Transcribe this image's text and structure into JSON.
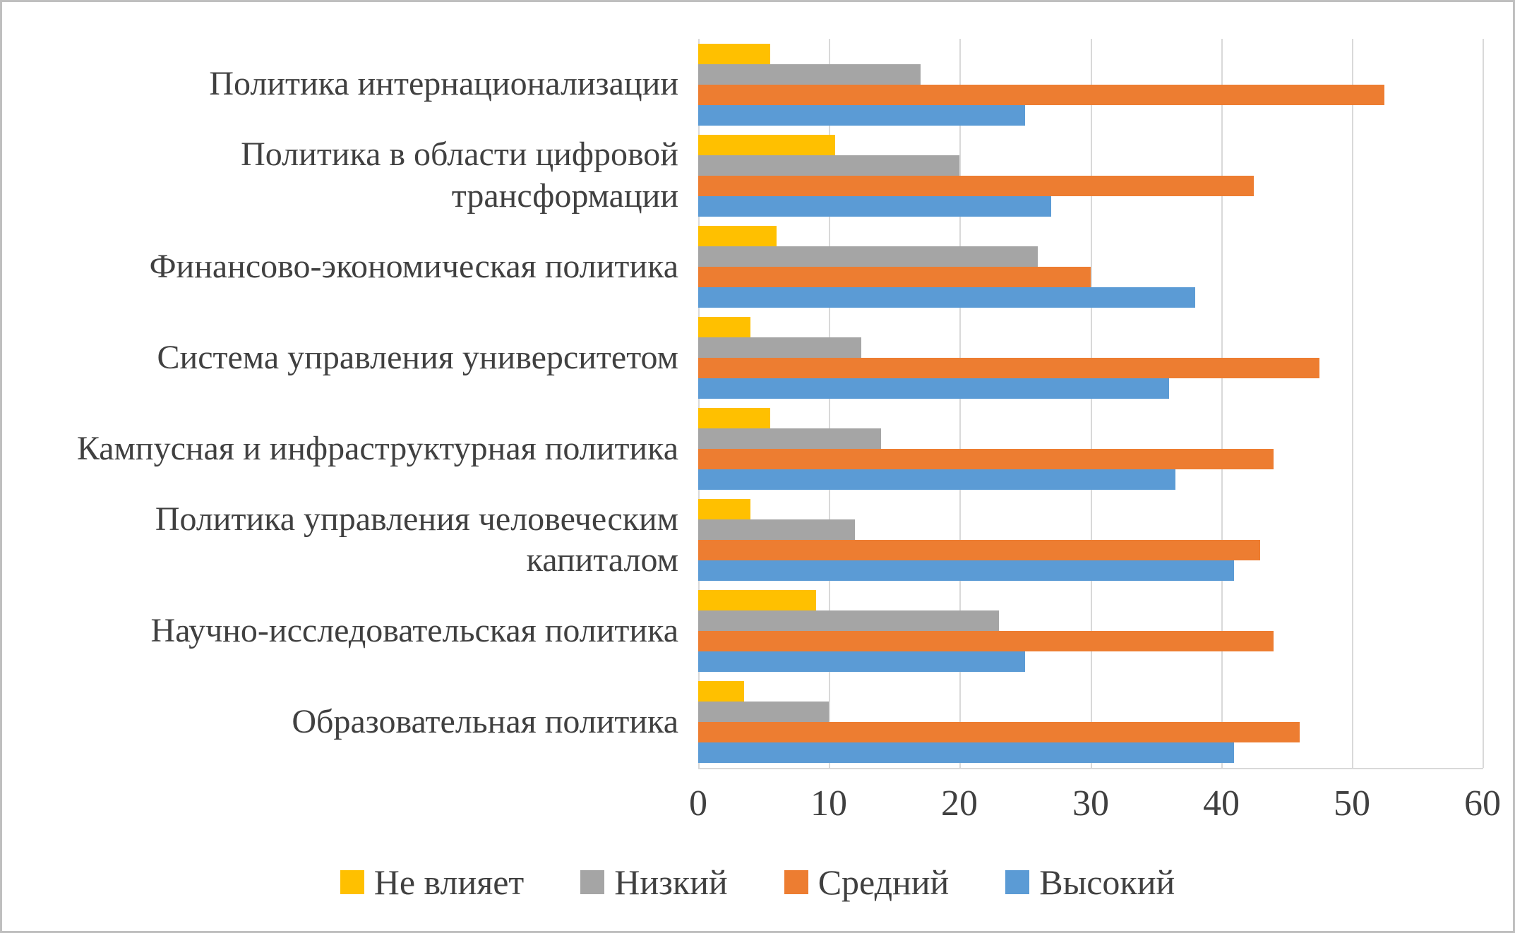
{
  "frame": {
    "background": "#FFFFFF",
    "border_color": "#BFBFBF"
  },
  "chart_data": {
    "type": "bar",
    "orientation": "horizontal",
    "title": "",
    "xlabel": "",
    "ylabel": "",
    "grid": true,
    "legend_position": "bottom",
    "xlim": [
      0,
      60
    ],
    "ticks": [
      0,
      10,
      20,
      30,
      40,
      50,
      60
    ],
    "categories": [
      "Политика интернационализации",
      "Политика в области цифровой трансформации",
      "Финансово-экономическая политика",
      "Система управления университетом",
      "Кампусная и инфраструктурная политика",
      "Политика управления человеческим капиталом",
      "Научно-исследовательская политика",
      "Образовательная политика"
    ],
    "series": [
      {
        "name": "Не влияет",
        "color": "#FFC000",
        "values": [
          5.5,
          10.5,
          6,
          4,
          5.5,
          4,
          9,
          3.5
        ]
      },
      {
        "name": "Низкий",
        "color": "#A5A5A5",
        "values": [
          17,
          20,
          26,
          12.5,
          14,
          12,
          23,
          10
        ]
      },
      {
        "name": "Средний",
        "color": "#ED7D31",
        "values": [
          52.5,
          42.5,
          30,
          47.5,
          44,
          43,
          44,
          46
        ]
      },
      {
        "name": "Высокий",
        "color": "#5B9BD5",
        "values": [
          25,
          27,
          38,
          36,
          36.5,
          41,
          25,
          41
        ]
      }
    ]
  }
}
